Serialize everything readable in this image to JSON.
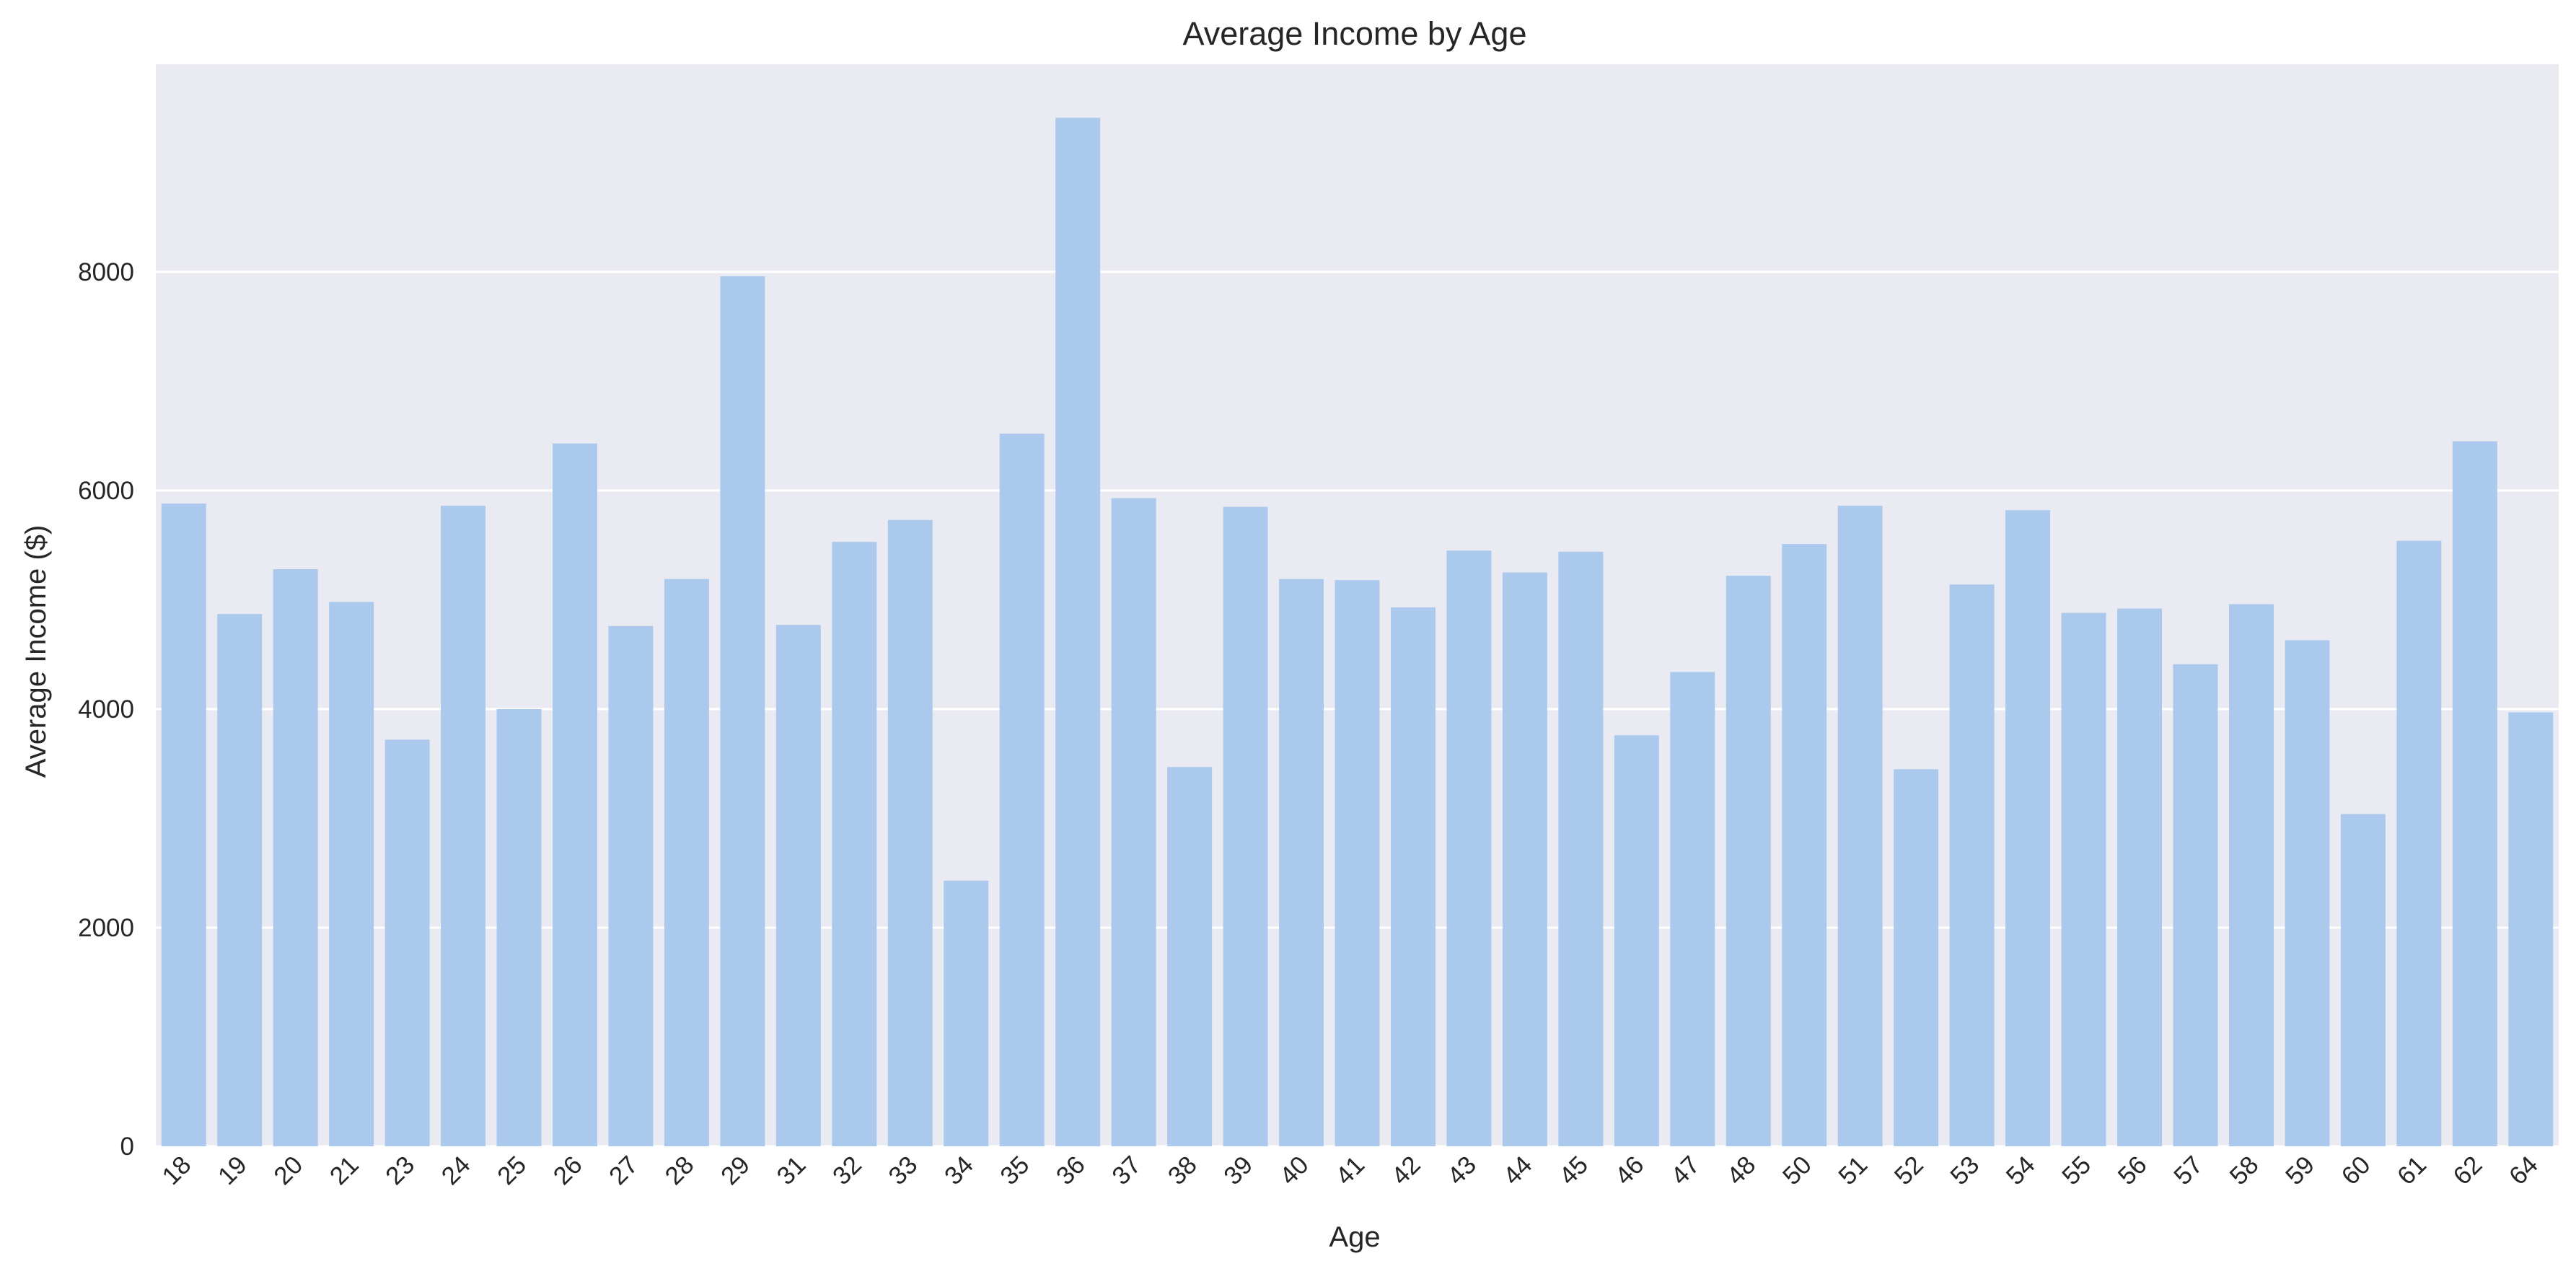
{
  "chart_data": {
    "type": "bar",
    "title": "Average Income by Age",
    "xlabel": "Age",
    "ylabel": "Average Income ($)",
    "ylim": [
      0,
      9900
    ],
    "yticks": [
      0,
      2000,
      4000,
      6000,
      8000
    ],
    "grid": true,
    "categories": [
      "18",
      "19",
      "20",
      "21",
      "23",
      "24",
      "25",
      "26",
      "27",
      "28",
      "29",
      "31",
      "32",
      "33",
      "34",
      "35",
      "36",
      "37",
      "38",
      "39",
      "40",
      "41",
      "42",
      "43",
      "44",
      "45",
      "46",
      "47",
      "48",
      "50",
      "51",
      "52",
      "53",
      "54",
      "55",
      "56",
      "57",
      "58",
      "59",
      "60",
      "61",
      "62",
      "64"
    ],
    "values": [
      5880,
      4870,
      5280,
      4980,
      3720,
      5860,
      4000,
      6430,
      4760,
      5190,
      7960,
      4770,
      5530,
      5730,
      2430,
      6520,
      9410,
      5930,
      3470,
      5850,
      5190,
      5180,
      4930,
      5450,
      5250,
      5440,
      3760,
      4340,
      5220,
      5510,
      5860,
      3450,
      5140,
      5820,
      4880,
      4920,
      4410,
      4960,
      4630,
      3040,
      5540,
      6450,
      3970
    ],
    "bar_color": "#abc9ec",
    "plot_bg": "#eaeaf2",
    "grid_color": "#ffffff"
  }
}
